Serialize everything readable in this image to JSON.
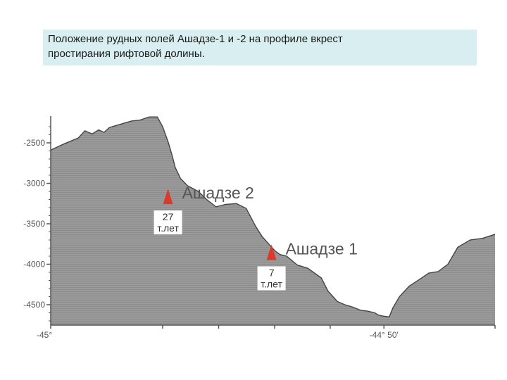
{
  "title": {
    "line1": "Положение рудных полей Ашадзе-1 и -2  на профиле вкрест",
    "line2": "простирания рифтовой долины."
  },
  "colors": {
    "terrain": "#999999",
    "terrain_line": "#444444",
    "marker": "#d93a2b",
    "title_bg": "#d8eef0"
  },
  "chart_data": {
    "type": "area",
    "title": "",
    "xlabel": "",
    "ylabel": "",
    "ylim": [
      -4800,
      -2200
    ],
    "xlim": [
      0,
      100
    ],
    "y_ticks": [
      {
        "value": -2500,
        "label": "-2500"
      },
      {
        "value": -3000,
        "label": "-3000"
      },
      {
        "value": -3500,
        "label": "-3500"
      },
      {
        "value": -4000,
        "label": "-4000"
      },
      {
        "value": -4500,
        "label": "-4500"
      }
    ],
    "x_tick_labels": [
      {
        "x": 0,
        "label": "-45°"
      },
      {
        "x": 75.0,
        "label": "-44° 50'"
      }
    ],
    "x_minor_ticks": [
      25.2,
      37.8,
      50.4,
      62.9
    ],
    "profile": {
      "x": [
        0,
        3.1,
        6.2,
        7.7,
        9.3,
        10.8,
        12.0,
        13.2,
        14.5,
        16.3,
        18.2,
        20.0,
        22.2,
        24.0,
        25.2,
        26.5,
        27.4,
        28.0,
        29.2,
        30.8,
        33.2,
        35.1,
        37.2,
        39.4,
        41.8,
        44.0,
        46.1,
        47.6,
        49.1,
        50.4,
        51.6,
        53.1,
        55.5,
        57.9,
        60.9,
        62.4,
        64.5,
        66.2,
        68.0,
        69.8,
        71.4,
        72.9,
        73.8,
        74.7,
        76.2,
        77.0,
        78.5,
        80.7,
        82.9,
        85.1,
        87.2,
        89.4,
        91.6,
        94.4,
        97.2,
        100
      ],
      "y": [
        -2590,
        -2510,
        -2440,
        -2350,
        -2390,
        -2340,
        -2370,
        -2310,
        -2290,
        -2260,
        -2230,
        -2220,
        -2180,
        -2180,
        -2300,
        -2500,
        -2670,
        -2800,
        -2940,
        -3030,
        -3100,
        -3200,
        -3290,
        -3260,
        -3250,
        -3310,
        -3530,
        -3660,
        -3750,
        -3830,
        -3880,
        -3900,
        -4010,
        -4050,
        -4170,
        -4330,
        -4460,
        -4500,
        -4530,
        -4570,
        -4580,
        -4600,
        -4630,
        -4640,
        -4650,
        -4540,
        -4400,
        -4270,
        -4190,
        -4110,
        -4090,
        -4000,
        -3790,
        -3700,
        -3680,
        -3630
      ]
    },
    "annotations": [
      {
        "name": "Ашадзе 2",
        "x": 26.4,
        "y": -3240,
        "age": "27 т.лет"
      },
      {
        "name": "Ашадзе 1",
        "x": 49.7,
        "y": -3930,
        "age": "7 т.лет"
      }
    ]
  }
}
